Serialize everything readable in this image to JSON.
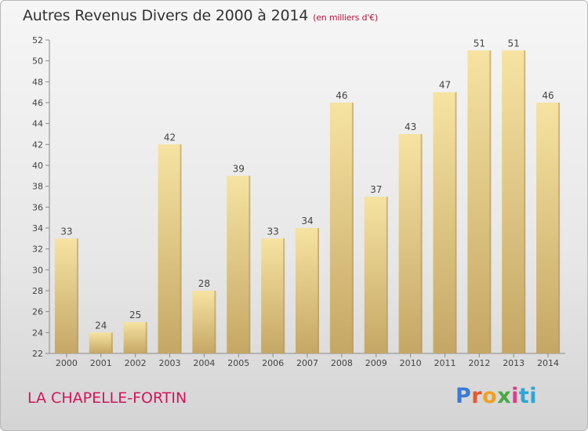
{
  "header": {
    "title": "Autres Revenus Divers de 2000 à 2014",
    "subtitle": "(en milliers d'€)"
  },
  "footer": {
    "place": "LA CHAPELLE-FORTIN",
    "logo": {
      "text": "Proxiti",
      "colors": [
        "#3a7bd5",
        "#e8562a",
        "#f0a020",
        "#49a942",
        "#e03a8c",
        "#2aa7d8"
      ]
    }
  },
  "chart_data": {
    "type": "bar",
    "title": "Autres Revenus Divers de 2000 à 2014",
    "subtitle": "(en milliers d'€)",
    "xlabel": "",
    "ylabel": "",
    "categories": [
      "2000",
      "2001",
      "2002",
      "2003",
      "2004",
      "2005",
      "2006",
      "2007",
      "2008",
      "2009",
      "2010",
      "2011",
      "2012",
      "2013",
      "2014"
    ],
    "values": [
      33,
      24,
      25,
      42,
      28,
      39,
      33,
      34,
      46,
      37,
      43,
      47,
      51,
      51,
      46
    ],
    "ylim": [
      22,
      52
    ],
    "yticks": [
      22,
      24,
      26,
      28,
      30,
      32,
      34,
      36,
      38,
      40,
      42,
      44,
      46,
      48,
      50,
      52
    ],
    "grid": false,
    "data_labels": true,
    "bar_color": "#e8cf86"
  }
}
